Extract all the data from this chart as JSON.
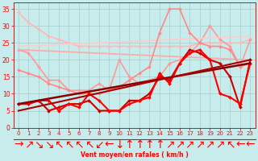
{
  "xlabel": "Vent moyen/en rafales ( km/h )",
  "xlim": [
    -0.5,
    23.5
  ],
  "ylim": [
    0,
    37
  ],
  "yticks": [
    0,
    5,
    10,
    15,
    20,
    25,
    30,
    35
  ],
  "xticks": [
    0,
    1,
    2,
    3,
    4,
    5,
    6,
    7,
    8,
    9,
    10,
    11,
    12,
    13,
    14,
    15,
    16,
    17,
    18,
    19,
    20,
    21,
    22,
    23
  ],
  "background_color": "#c8ecec",
  "grid_color": "#a8d4d4",
  "lines": [
    {
      "comment": "light pink descending line, top, from 34 to ~25",
      "x": [
        0,
        1,
        2,
        3,
        4,
        5,
        6,
        7,
        8,
        9,
        10,
        11,
        12,
        13,
        14,
        15,
        16,
        17,
        18,
        19,
        20,
        21,
        22,
        23
      ],
      "y": [
        34,
        31,
        29,
        27,
        26,
        25,
        24,
        24,
        24,
        24,
        24,
        24,
        24,
        24,
        24,
        24,
        24,
        24,
        25,
        25,
        25,
        25,
        25,
        26
      ],
      "color": "#ffb8b8",
      "lw": 1.2,
      "marker": "D",
      "ms": 2.0
    },
    {
      "comment": "medium pink, descending then rising, starts ~23",
      "x": [
        0,
        1,
        2,
        3,
        4,
        5,
        6,
        7,
        8,
        9,
        10,
        11,
        12,
        13,
        14,
        15,
        16,
        17,
        18,
        19,
        20,
        21,
        22,
        23
      ],
      "y": [
        23,
        22,
        18,
        14,
        14,
        11,
        11,
        11,
        13,
        11,
        20,
        15,
        13,
        14,
        15,
        19,
        20,
        22,
        25,
        30,
        26,
        24,
        18,
        26
      ],
      "color": "#ff9999",
      "lw": 1.2,
      "marker": "D",
      "ms": 2.0
    },
    {
      "comment": "pink diagonal trend line from 23 to 20",
      "x": [
        0,
        23
      ],
      "y": [
        23,
        20
      ],
      "color": "#ffaaaa",
      "lw": 1.3,
      "marker": null,
      "ms": 0
    },
    {
      "comment": "lighter pink diagonal trend line from ~24 to ~27",
      "x": [
        0,
        23
      ],
      "y": [
        24,
        27
      ],
      "color": "#ffcccc",
      "lw": 1.3,
      "marker": null,
      "ms": 0
    },
    {
      "comment": "pink line with peak at 15-16 ~35",
      "x": [
        0,
        1,
        2,
        3,
        4,
        5,
        6,
        7,
        8,
        9,
        10,
        11,
        12,
        13,
        14,
        15,
        16,
        17,
        18,
        19,
        20,
        21,
        22,
        23
      ],
      "y": [
        17,
        16,
        15,
        13,
        12,
        11,
        10,
        10,
        10,
        11,
        12,
        14,
        16,
        18,
        28,
        35,
        35,
        28,
        25,
        24,
        24,
        23,
        18,
        19
      ],
      "color": "#ff8888",
      "lw": 1.2,
      "marker": "D",
      "ms": 2.0
    },
    {
      "comment": "red line with markers, erratic path lower half",
      "x": [
        0,
        1,
        2,
        3,
        4,
        5,
        6,
        7,
        8,
        9,
        10,
        11,
        12,
        13,
        14,
        15,
        16,
        17,
        18,
        19,
        20,
        21,
        22,
        23
      ],
      "y": [
        7,
        7,
        8,
        5,
        6,
        7,
        7,
        8,
        5,
        5,
        5,
        8,
        8,
        10,
        15,
        14,
        19,
        23,
        22,
        20,
        19,
        15,
        6,
        20
      ],
      "color": "#cc0000",
      "lw": 1.5,
      "marker": "D",
      "ms": 2.0
    },
    {
      "comment": "bright red line, erratic",
      "x": [
        0,
        1,
        2,
        3,
        4,
        5,
        6,
        7,
        8,
        9,
        10,
        11,
        12,
        13,
        14,
        15,
        16,
        17,
        18,
        19,
        20,
        21,
        22,
        23
      ],
      "y": [
        7,
        7,
        8,
        8,
        5,
        7,
        6,
        10,
        8,
        5,
        5,
        7,
        8,
        9,
        16,
        13,
        19,
        22,
        23,
        20,
        10,
        9,
        7,
        19
      ],
      "color": "#ff0000",
      "lw": 1.5,
      "marker": "D",
      "ms": 2.0
    },
    {
      "comment": "dark red solid diagonal trend from 7 to 19",
      "x": [
        0,
        23
      ],
      "y": [
        7,
        19
      ],
      "color": "#880000",
      "lw": 1.8,
      "marker": null,
      "ms": 0
    },
    {
      "comment": "dark red solid diagonal trend from 7 to 20",
      "x": [
        0,
        23
      ],
      "y": [
        5,
        20
      ],
      "color": "#aa0000",
      "lw": 1.5,
      "marker": null,
      "ms": 0
    }
  ]
}
